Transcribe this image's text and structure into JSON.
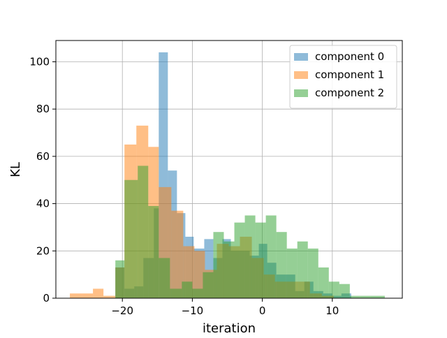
{
  "chart_data": {
    "type": "histogram",
    "xlabel": "iteration",
    "ylabel": "KL",
    "xlim": [
      -29.5,
      20
    ],
    "ylim": [
      0,
      109
    ],
    "xticks": [
      -20,
      -10,
      0,
      10
    ],
    "xtick_labels": [
      "−20",
      "−10",
      "0",
      "10"
    ],
    "yticks": [
      0,
      20,
      40,
      60,
      80,
      100
    ],
    "ytick_labels": [
      "0",
      "20",
      "40",
      "60",
      "80",
      "100"
    ],
    "grid": true,
    "legend_position": "top-right",
    "series": [
      {
        "name": "component 0",
        "color": "#1f77b4",
        "bins": [
          [
            -21.0,
            -19.7,
            13
          ],
          [
            -19.7,
            -18.3,
            4
          ],
          [
            -18.3,
            -17.0,
            5
          ],
          [
            -17.0,
            -15.5,
            17
          ],
          [
            -15.5,
            -14.8,
            38
          ],
          [
            -14.8,
            -13.5,
            104
          ],
          [
            -13.5,
            -12.2,
            54
          ],
          [
            -12.2,
            -11.0,
            36
          ],
          [
            -11.0,
            -9.8,
            26
          ],
          [
            -9.8,
            -8.3,
            21
          ],
          [
            -8.3,
            -7.0,
            25
          ],
          [
            -7.0,
            -5.7,
            17
          ],
          [
            -5.7,
            -4.5,
            25
          ],
          [
            -4.5,
            -3.2,
            20
          ],
          [
            -3.2,
            -1.8,
            20
          ],
          [
            -1.8,
            -0.5,
            18
          ],
          [
            -0.5,
            0.7,
            23
          ],
          [
            0.7,
            2.0,
            15
          ],
          [
            2.0,
            3.3,
            10
          ],
          [
            3.3,
            4.7,
            10
          ],
          [
            4.7,
            6.0,
            3
          ],
          [
            6.0,
            7.3,
            7
          ],
          [
            7.3,
            8.7,
            3
          ],
          [
            8.7,
            10.0,
            2
          ],
          [
            10.0,
            11.3,
            1
          ],
          [
            11.3,
            12.7,
            2
          ]
        ]
      },
      {
        "name": "component 1",
        "color": "#ff7f0e",
        "bins": [
          [
            -27.5,
            -25.8,
            2
          ],
          [
            -25.8,
            -24.2,
            2
          ],
          [
            -24.2,
            -22.7,
            4
          ],
          [
            -22.7,
            -21.0,
            1
          ],
          [
            -21.0,
            -19.7,
            13
          ],
          [
            -19.7,
            -18.0,
            65
          ],
          [
            -18.0,
            -16.3,
            73
          ],
          [
            -16.3,
            -14.8,
            64
          ],
          [
            -14.8,
            -13.0,
            47
          ],
          [
            -13.0,
            -11.3,
            37
          ],
          [
            -11.3,
            -9.7,
            22
          ],
          [
            -9.7,
            -8.2,
            20
          ],
          [
            -8.2,
            -6.5,
            12
          ],
          [
            -6.5,
            -4.8,
            23
          ],
          [
            -4.8,
            -3.2,
            22
          ],
          [
            -3.2,
            -1.5,
            26
          ],
          [
            -1.5,
            0.2,
            17
          ],
          [
            0.2,
            1.8,
            10
          ],
          [
            1.8,
            3.5,
            7
          ],
          [
            3.5,
            5.2,
            7
          ],
          [
            5.2,
            6.8,
            7
          ],
          [
            6.8,
            8.5,
            2
          ],
          [
            8.5,
            10.2,
            1
          ]
        ]
      },
      {
        "name": "component 2",
        "color": "#2ca02c",
        "bins": [
          [
            -21.0,
            -19.7,
            16
          ],
          [
            -19.7,
            -17.8,
            50
          ],
          [
            -17.8,
            -16.3,
            56
          ],
          [
            -16.3,
            -14.8,
            39
          ],
          [
            -14.8,
            -13.2,
            17
          ],
          [
            -13.2,
            -11.5,
            4
          ],
          [
            -11.5,
            -10.0,
            7
          ],
          [
            -10.0,
            -8.5,
            4
          ],
          [
            -8.5,
            -7.0,
            11
          ],
          [
            -7.0,
            -5.5,
            28
          ],
          [
            -5.5,
            -4.0,
            24
          ],
          [
            -4.0,
            -2.5,
            32
          ],
          [
            -2.5,
            -1.0,
            35
          ],
          [
            -1.0,
            0.5,
            32
          ],
          [
            0.5,
            2.0,
            35
          ],
          [
            2.0,
            3.5,
            28
          ],
          [
            3.5,
            5.0,
            21
          ],
          [
            5.0,
            6.5,
            24
          ],
          [
            6.5,
            8.0,
            21
          ],
          [
            8.0,
            9.5,
            13
          ],
          [
            9.5,
            11.0,
            7
          ],
          [
            11.0,
            12.5,
            6
          ],
          [
            12.5,
            14.0,
            1
          ],
          [
            14.0,
            15.5,
            1
          ],
          [
            15.5,
            17.5,
            1
          ]
        ]
      }
    ]
  }
}
